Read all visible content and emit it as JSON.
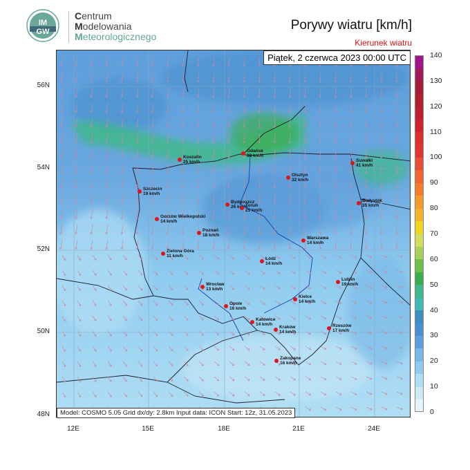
{
  "header": {
    "org_lines": [
      {
        "initial": "C",
        "rest": "entrum"
      },
      {
        "initial": "M",
        "rest": "odelowania"
      },
      {
        "initial": "M",
        "rest": "eteorologicznego"
      }
    ],
    "logo_text": "IMGW",
    "title": "Porywy wiatru [km/h]",
    "subtitle": "Kierunek wiatru",
    "subtitle_color": "#dd1111"
  },
  "map": {
    "datetime": "Piątek, 2 czerwca 2023 00:00 UTC",
    "info": "Model: COSMO 5.05  Grid dx/dy: 2.8km  Input data: ICON  Start: 12z, 31.05.2023",
    "lat_labels": [
      "56N",
      "54N",
      "52N",
      "50N",
      "48N"
    ],
    "lon_labels": [
      "12E",
      "15E",
      "18E",
      "21E",
      "24E"
    ],
    "arrow_color": "#c98aa0",
    "cities": [
      {
        "name": "Koszalin",
        "value": "25 km/h"
      },
      {
        "name": "Gdańsk",
        "value": "38 km/h"
      },
      {
        "name": "Suwałki",
        "value": "41 km/h"
      },
      {
        "name": "Szczecin",
        "value": "19 km/h"
      },
      {
        "name": "Olsztyn",
        "value": "32 km/h"
      },
      {
        "name": "Bydgoszcz",
        "value": "26 km/h"
      },
      {
        "name": "Toruń",
        "value": "25 km/h"
      },
      {
        "name": "Białystok",
        "value": "35 km/h"
      },
      {
        "name": "Gorzów Wielkopolski",
        "value": "14 km/h"
      },
      {
        "name": "Poznań",
        "value": "18 km/h"
      },
      {
        "name": "Warszawa",
        "value": "14 km/h"
      },
      {
        "name": "Zielona Góra",
        "value": "11 km/h"
      },
      {
        "name": "Łódź",
        "value": "14 km/h"
      },
      {
        "name": "Lublin",
        "value": "19 km/h"
      },
      {
        "name": "Wrocław",
        "value": "13 km/h"
      },
      {
        "name": "Kielce",
        "value": "14 km/h"
      },
      {
        "name": "Opole",
        "value": "16 km/h"
      },
      {
        "name": "Katowice",
        "value": "14 km/h"
      },
      {
        "name": "Kraków",
        "value": "14 km/h"
      },
      {
        "name": "Rzeszów",
        "value": "17 km/h"
      },
      {
        "name": "Zakopane",
        "value": "16 km/h"
      }
    ]
  },
  "colorbar": {
    "labels": [
      "140",
      "130",
      "120",
      "110",
      "100",
      "90",
      "80",
      "70",
      "60",
      "50",
      "40",
      "30",
      "20",
      "10",
      "0"
    ],
    "colors": [
      "#e8f4fb",
      "#cde9f8",
      "#b0def5",
      "#8ecbef",
      "#78b8e6",
      "#5f9fdc",
      "#4a8fcf",
      "#3d8fc0",
      "#3cbcb2",
      "#3fb98a",
      "#3aae4f",
      "#6fbf4a",
      "#a9d15a",
      "#d5dd5a",
      "#f0d51c",
      "#f1b42a",
      "#f39a2c",
      "#f47c2c",
      "#f16530",
      "#e94d35",
      "#e03535",
      "#dc2f30",
      "#cf2130",
      "#c01e2e",
      "#b01f2e",
      "#a51d3a",
      "#a21b58",
      "#a0158a"
    ]
  }
}
